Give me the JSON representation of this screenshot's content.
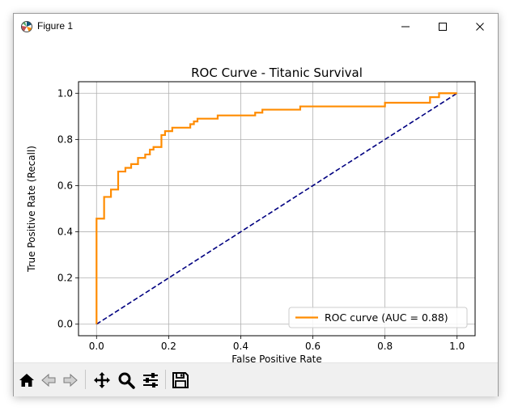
{
  "window": {
    "title": "Figure 1"
  },
  "toolbar": {
    "buttons": [
      {
        "name": "home-icon",
        "tooltip": "Reset original view"
      },
      {
        "name": "back-icon",
        "tooltip": "Back"
      },
      {
        "name": "forward-icon",
        "tooltip": "Forward"
      },
      {
        "name": "pan-icon",
        "tooltip": "Pan"
      },
      {
        "name": "zoom-icon",
        "tooltip": "Zoom"
      },
      {
        "name": "configure-subplots-icon",
        "tooltip": "Configure subplots"
      },
      {
        "name": "save-icon",
        "tooltip": "Save"
      }
    ]
  },
  "chart_data": {
    "type": "line",
    "title": "ROC Curve - Titanic Survival",
    "xlabel": "False Positive Rate",
    "ylabel": "True Positive Rate (Recall)",
    "xlim": [
      -0.05,
      1.05
    ],
    "ylim": [
      -0.05,
      1.05
    ],
    "xticks": [
      "0.0",
      "0.2",
      "0.4",
      "0.6",
      "0.8",
      "1.0"
    ],
    "yticks": [
      "0.0",
      "0.2",
      "0.4",
      "0.6",
      "0.8",
      "1.0"
    ],
    "grid": true,
    "legend_position": "lower-right",
    "series": [
      {
        "name": "ROC curve (AUC = 0.88)",
        "color": "#ff8c00",
        "style": "solid",
        "x": [
          0.0,
          0.0,
          0.0,
          0.021,
          0.021,
          0.04,
          0.04,
          0.06,
          0.06,
          0.08,
          0.08,
          0.096,
          0.096,
          0.115,
          0.115,
          0.135,
          0.135,
          0.148,
          0.148,
          0.158,
          0.158,
          0.18,
          0.18,
          0.19,
          0.19,
          0.21,
          0.21,
          0.26,
          0.26,
          0.27,
          0.27,
          0.28,
          0.28,
          0.336,
          0.336,
          0.44,
          0.44,
          0.46,
          0.46,
          0.565,
          0.565,
          0.8,
          0.8,
          0.925,
          0.925,
          0.95,
          0.95,
          1.0
        ],
        "y": [
          0.0,
          0.0,
          0.457,
          0.457,
          0.551,
          0.551,
          0.583,
          0.583,
          0.661,
          0.661,
          0.677,
          0.677,
          0.693,
          0.693,
          0.72,
          0.72,
          0.735,
          0.735,
          0.756,
          0.756,
          0.767,
          0.767,
          0.819,
          0.819,
          0.836,
          0.836,
          0.851,
          0.851,
          0.866,
          0.866,
          0.878,
          0.878,
          0.89,
          0.89,
          0.904,
          0.904,
          0.916,
          0.916,
          0.929,
          0.929,
          0.943,
          0.943,
          0.959,
          0.959,
          0.983,
          0.983,
          1.0,
          1.0
        ]
      },
      {
        "name": "",
        "color": "#000080",
        "style": "dashed",
        "x": [
          0.0,
          1.0
        ],
        "y": [
          0.0,
          1.0
        ]
      }
    ]
  }
}
